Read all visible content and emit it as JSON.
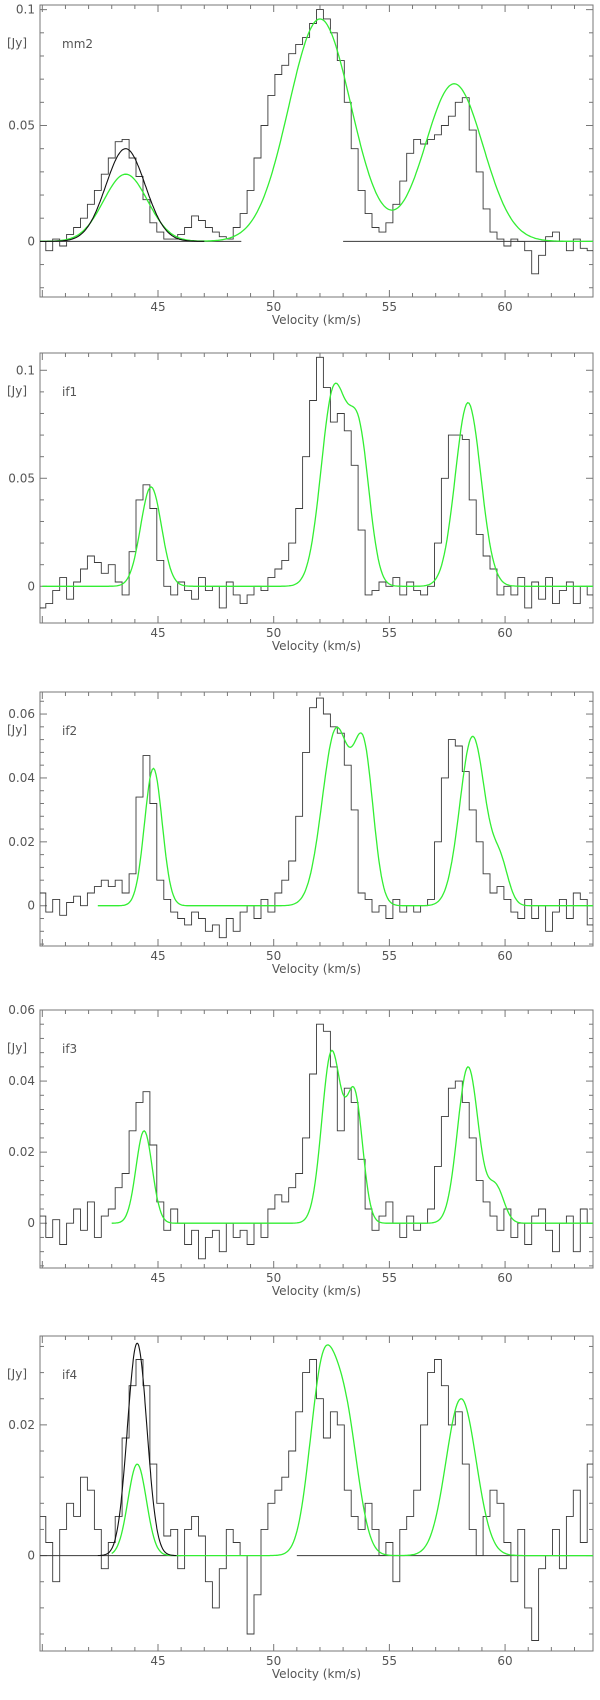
{
  "colors": {
    "observed": "#3a3a3a",
    "fit": "#33ee33",
    "fit_dark": "#111111",
    "axis": "#777777",
    "text": "#555555"
  },
  "chart_data": [
    {
      "type": "line",
      "panel_label": "mm2",
      "unit_label": "[Jy]",
      "xlabel": "Velocity (km/s)",
      "xlim": [
        39.9,
        63.8
      ],
      "ylim": [
        -0.024,
        0.102
      ],
      "xticks": [
        45,
        50,
        55,
        60
      ],
      "yticks": [
        {
          "v": 0,
          "label": "0"
        },
        {
          "v": 0.05,
          "label": "0.05"
        },
        {
          "v": 0.1,
          "label": "0.1"
        }
      ],
      "baselines": [
        [
          39.9,
          48.6
        ],
        [
          53.0,
          63.8
        ]
      ],
      "fit_range": [
        39.9,
        63.8
      ],
      "fit_components": [
        {
          "center": 43.6,
          "amp": 0.029,
          "sigma": 0.95
        },
        {
          "center": 52.0,
          "amp": 0.096,
          "sigma": 1.35
        },
        {
          "center": 57.8,
          "amp": 0.068,
          "sigma": 1.25
        }
      ],
      "dark_fit": {
        "center": 43.6,
        "amp": 0.04,
        "sigma": 0.85,
        "range": [
          39.9,
          47.0
        ]
      },
      "observed": {
        "x": [
          40.0,
          40.3,
          40.6,
          40.9,
          41.2,
          41.5,
          41.8,
          42.1,
          42.4,
          42.7,
          43.0,
          43.3,
          43.6,
          43.9,
          44.2,
          44.5,
          44.8,
          45.1,
          45.4,
          45.7,
          46.0,
          46.3,
          46.6,
          46.9,
          47.2,
          47.5,
          47.8,
          48.1,
          48.4,
          48.7,
          49.0,
          49.3,
          49.6,
          49.9,
          50.2,
          50.5,
          50.8,
          51.1,
          51.4,
          51.7,
          52.0,
          52.3,
          52.6,
          52.9,
          53.2,
          53.5,
          53.8,
          54.1,
          54.4,
          54.7,
          55.0,
          55.3,
          55.6,
          55.9,
          56.2,
          56.5,
          56.8,
          57.1,
          57.4,
          57.7,
          58.0,
          58.3,
          58.6,
          58.9,
          59.2,
          59.5,
          59.8,
          60.1,
          60.4,
          60.7,
          61.0,
          61.3,
          61.6,
          61.9,
          62.2,
          62.5,
          62.8,
          63.1,
          63.4,
          63.7
        ],
        "y": [
          0.0,
          -0.004,
          0.001,
          -0.002,
          0.003,
          0.006,
          0.01,
          0.016,
          0.022,
          0.029,
          0.036,
          0.043,
          0.044,
          0.036,
          0.028,
          0.018,
          0.008,
          0.004,
          0.001,
          0.001,
          0.003,
          0.006,
          0.011,
          0.009,
          0.006,
          0.004,
          0.002,
          0.001,
          0.006,
          0.012,
          0.022,
          0.036,
          0.05,
          0.063,
          0.072,
          0.076,
          0.081,
          0.085,
          0.088,
          0.094,
          0.1,
          0.096,
          0.09,
          0.078,
          0.06,
          0.04,
          0.022,
          0.012,
          0.006,
          0.004,
          0.008,
          0.016,
          0.026,
          0.038,
          0.044,
          0.042,
          0.044,
          0.046,
          0.05,
          0.054,
          0.06,
          0.062,
          0.048,
          0.03,
          0.014,
          0.004,
          0.001,
          -0.002,
          0.001,
          0.0,
          -0.004,
          -0.014,
          -0.006,
          0.002,
          0.004,
          0.0,
          -0.004,
          0.001,
          -0.003,
          -0.004
        ]
      }
    },
    {
      "type": "line",
      "panel_label": "if1",
      "unit_label": "[Jy]",
      "xlabel": "Velocity (km/s)",
      "xlim": [
        39.9,
        63.8
      ],
      "ylim": [
        -0.017,
        0.108
      ],
      "xticks": [
        45,
        50,
        55,
        60
      ],
      "yticks": [
        {
          "v": 0,
          "label": "0"
        },
        {
          "v": 0.05,
          "label": "0.05"
        },
        {
          "v": 0.1,
          "label": "0.1"
        }
      ],
      "baselines": [],
      "fit_range": [
        40.0,
        63.8
      ],
      "fit_components": [
        {
          "center": 44.7,
          "amp": 0.046,
          "sigma": 0.45
        },
        {
          "center": 52.6,
          "amp": 0.09,
          "sigma": 0.55
        },
        {
          "center": 53.7,
          "amp": 0.065,
          "sigma": 0.45
        },
        {
          "center": 58.4,
          "amp": 0.085,
          "sigma": 0.55
        }
      ],
      "observed": {
        "x": [
          40.0,
          40.3,
          40.6,
          40.9,
          41.2,
          41.5,
          41.8,
          42.1,
          42.4,
          42.7,
          43.0,
          43.3,
          43.6,
          43.9,
          44.2,
          44.5,
          44.8,
          45.1,
          45.4,
          45.7,
          46.0,
          46.3,
          46.6,
          46.9,
          47.2,
          47.5,
          47.8,
          48.1,
          48.4,
          48.7,
          49.0,
          49.3,
          49.6,
          49.9,
          50.2,
          50.5,
          50.8,
          51.1,
          51.4,
          51.7,
          52.0,
          52.3,
          52.6,
          52.9,
          53.2,
          53.5,
          53.8,
          54.1,
          54.4,
          54.7,
          55.0,
          55.3,
          55.6,
          55.9,
          56.2,
          56.5,
          56.8,
          57.1,
          57.4,
          57.7,
          58.0,
          58.3,
          58.6,
          58.9,
          59.2,
          59.5,
          59.8,
          60.1,
          60.4,
          60.7,
          61.0,
          61.3,
          61.6,
          61.9,
          62.2,
          62.5,
          62.8,
          63.1,
          63.4,
          63.7
        ],
        "y": [
          -0.01,
          -0.008,
          -0.002,
          0.004,
          -0.006,
          0.002,
          0.008,
          0.014,
          0.011,
          0.006,
          0.01,
          0.002,
          -0.004,
          0.016,
          0.04,
          0.047,
          0.036,
          0.012,
          0.0,
          -0.004,
          0.002,
          -0.002,
          -0.006,
          0.004,
          -0.002,
          0.0,
          -0.01,
          0.002,
          -0.004,
          -0.008,
          -0.004,
          0.0,
          -0.002,
          0.004,
          0.008,
          0.012,
          0.02,
          0.036,
          0.06,
          0.086,
          0.106,
          0.092,
          0.076,
          0.08,
          0.072,
          0.056,
          0.026,
          -0.004,
          -0.002,
          0.002,
          0.0,
          0.004,
          -0.004,
          0.002,
          -0.002,
          -0.004,
          0.0,
          0.02,
          0.05,
          0.07,
          0.07,
          0.068,
          0.04,
          0.024,
          0.014,
          0.008,
          -0.004,
          0.0,
          -0.004,
          0.004,
          -0.01,
          0.002,
          -0.006,
          0.004,
          -0.008,
          -0.002,
          0.002,
          -0.008,
          0.0,
          -0.004
        ]
      }
    },
    {
      "type": "line",
      "panel_label": "if2",
      "unit_label": "[Jy]",
      "xlabel": "Velocity (km/s)",
      "xlim": [
        39.9,
        63.8
      ],
      "ylim": [
        -0.0126,
        0.0669
      ],
      "xticks": [
        45,
        50,
        55,
        60
      ],
      "yticks": [
        {
          "v": 0,
          "label": "0"
        },
        {
          "v": 0.02,
          "label": "0.02"
        },
        {
          "v": 0.04,
          "label": "0.04"
        },
        {
          "v": 0.06,
          "label": "0.06"
        }
      ],
      "baselines": [],
      "fit_range": [
        42.4,
        63.8
      ],
      "fit_components": [
        {
          "center": 44.8,
          "amp": 0.043,
          "sigma": 0.38
        },
        {
          "center": 52.7,
          "amp": 0.055,
          "sigma": 0.6
        },
        {
          "center": 53.9,
          "amp": 0.045,
          "sigma": 0.42
        },
        {
          "center": 58.6,
          "amp": 0.053,
          "sigma": 0.55
        },
        {
          "center": 59.8,
          "amp": 0.012,
          "sigma": 0.35
        }
      ],
      "observed": {
        "x": [
          40.0,
          40.3,
          40.6,
          40.9,
          41.2,
          41.5,
          41.8,
          42.1,
          42.4,
          42.7,
          43.0,
          43.3,
          43.6,
          43.9,
          44.2,
          44.5,
          44.8,
          45.1,
          45.4,
          45.7,
          46.0,
          46.3,
          46.6,
          46.9,
          47.2,
          47.5,
          47.8,
          48.1,
          48.4,
          48.7,
          49.0,
          49.3,
          49.6,
          49.9,
          50.2,
          50.5,
          50.8,
          51.1,
          51.4,
          51.7,
          52.0,
          52.3,
          52.6,
          52.9,
          53.2,
          53.5,
          53.8,
          54.1,
          54.4,
          54.7,
          55.0,
          55.3,
          55.6,
          55.9,
          56.2,
          56.5,
          56.8,
          57.1,
          57.4,
          57.7,
          58.0,
          58.3,
          58.6,
          58.9,
          59.2,
          59.5,
          59.8,
          60.1,
          60.4,
          60.7,
          61.0,
          61.3,
          61.6,
          61.9,
          62.2,
          62.5,
          62.8,
          63.1,
          63.4,
          63.7
        ],
        "y": [
          0.004,
          -0.002,
          0.002,
          -0.003,
          0.001,
          0.003,
          0.0,
          0.004,
          0.006,
          0.008,
          0.006,
          0.008,
          0.004,
          0.01,
          0.034,
          0.047,
          0.032,
          0.008,
          0.002,
          -0.002,
          -0.004,
          -0.006,
          -0.002,
          -0.004,
          -0.008,
          -0.006,
          -0.01,
          -0.004,
          -0.008,
          -0.002,
          0.0,
          -0.004,
          0.002,
          -0.002,
          0.004,
          0.008,
          0.014,
          0.028,
          0.048,
          0.062,
          0.065,
          0.06,
          0.056,
          0.054,
          0.044,
          0.03,
          0.004,
          0.002,
          -0.002,
          0.0,
          -0.004,
          0.002,
          -0.002,
          0.0,
          -0.002,
          0.0,
          0.002,
          0.02,
          0.04,
          0.052,
          0.05,
          0.042,
          0.03,
          0.02,
          0.01,
          0.004,
          0.006,
          0.002,
          -0.002,
          -0.004,
          0.002,
          -0.004,
          0.0,
          -0.008,
          -0.002,
          0.002,
          -0.004,
          0.004,
          0.002,
          -0.006
        ]
      }
    },
    {
      "type": "line",
      "panel_label": "if3",
      "unit_label": "[Jy]",
      "xlabel": "Velocity (km/s)",
      "xlim": [
        39.9,
        63.8
      ],
      "ylim": [
        -0.0126,
        0.06
      ],
      "xticks": [
        45,
        50,
        55,
        60
      ],
      "yticks": [
        {
          "v": 0,
          "label": "0"
        },
        {
          "v": 0.02,
          "label": "0.02"
        },
        {
          "v": 0.04,
          "label": "0.04"
        },
        {
          "v": 0.06,
          "label": "0.06"
        }
      ],
      "baselines": [],
      "fit_range": [
        43.0,
        63.8
      ],
      "fit_components": [
        {
          "center": 44.4,
          "amp": 0.026,
          "sigma": 0.35
        },
        {
          "center": 52.5,
          "amp": 0.048,
          "sigma": 0.42
        },
        {
          "center": 53.5,
          "amp": 0.035,
          "sigma": 0.35
        },
        {
          "center": 58.4,
          "amp": 0.044,
          "sigma": 0.45
        },
        {
          "center": 59.6,
          "amp": 0.01,
          "sigma": 0.35
        }
      ],
      "observed": {
        "x": [
          40.0,
          40.3,
          40.6,
          40.9,
          41.2,
          41.5,
          41.8,
          42.1,
          42.4,
          42.7,
          43.0,
          43.3,
          43.6,
          43.9,
          44.2,
          44.5,
          44.8,
          45.1,
          45.4,
          45.7,
          46.0,
          46.3,
          46.6,
          46.9,
          47.2,
          47.5,
          47.8,
          48.1,
          48.4,
          48.7,
          49.0,
          49.3,
          49.6,
          49.9,
          50.2,
          50.5,
          50.8,
          51.1,
          51.4,
          51.7,
          52.0,
          52.3,
          52.6,
          52.9,
          53.2,
          53.5,
          53.8,
          54.1,
          54.4,
          54.7,
          55.0,
          55.3,
          55.6,
          55.9,
          56.2,
          56.5,
          56.8,
          57.1,
          57.4,
          57.7,
          58.0,
          58.3,
          58.6,
          58.9,
          59.2,
          59.5,
          59.8,
          60.1,
          60.4,
          60.7,
          61.0,
          61.3,
          61.6,
          61.9,
          62.2,
          62.5,
          62.8,
          63.1,
          63.4,
          63.7
        ],
        "y": [
          0.002,
          -0.004,
          0.001,
          -0.006,
          0.0,
          0.004,
          -0.002,
          0.006,
          -0.004,
          0.002,
          0.004,
          0.01,
          0.014,
          0.026,
          0.034,
          0.037,
          0.022,
          0.006,
          -0.002,
          0.004,
          0.0,
          -0.006,
          -0.002,
          -0.01,
          -0.004,
          -0.002,
          -0.008,
          0.0,
          -0.004,
          -0.002,
          -0.006,
          0.0,
          -0.004,
          0.004,
          0.008,
          0.006,
          0.01,
          0.014,
          0.024,
          0.042,
          0.056,
          0.054,
          0.044,
          0.026,
          0.038,
          0.034,
          0.018,
          0.004,
          -0.002,
          0.002,
          0.006,
          0.0,
          -0.004,
          0.002,
          -0.002,
          0.0,
          0.004,
          0.016,
          0.03,
          0.038,
          0.04,
          0.034,
          0.024,
          0.012,
          0.006,
          0.002,
          -0.002,
          0.004,
          -0.004,
          0.0,
          -0.006,
          0.002,
          0.004,
          -0.002,
          -0.008,
          0.0,
          0.002,
          -0.008,
          0.004,
          0.0
        ]
      }
    },
    {
      "type": "line",
      "panel_label": "if4",
      "unit_label": "[Jy]",
      "xlabel": "Velocity (km/s)",
      "xlim": [
        39.9,
        63.8
      ],
      "ylim": [
        -0.0146,
        0.0336
      ],
      "xticks": [
        45,
        50,
        55,
        60
      ],
      "yticks": [
        {
          "v": 0,
          "label": "0"
        },
        {
          "v": 0.02,
          "label": "0.02"
        }
      ],
      "baselines": [
        [
          39.9,
          46.0
        ],
        [
          51.0,
          63.8
        ]
      ],
      "fit_range": [
        43.0,
        63.8
      ],
      "fit_components": [
        {
          "center": 44.1,
          "amp": 0.014,
          "sigma": 0.4
        },
        {
          "center": 52.1,
          "amp": 0.027,
          "sigma": 0.55
        },
        {
          "center": 53.1,
          "amp": 0.02,
          "sigma": 0.55
        },
        {
          "center": 58.1,
          "amp": 0.024,
          "sigma": 0.65
        }
      ],
      "dark_fit": {
        "center": 44.1,
        "amp": 0.0325,
        "sigma": 0.42,
        "range": [
          42.4,
          45.8
        ]
      },
      "observed": {
        "x": [
          40.0,
          40.3,
          40.6,
          40.9,
          41.2,
          41.5,
          41.8,
          42.1,
          42.4,
          42.7,
          43.0,
          43.3,
          43.6,
          43.9,
          44.2,
          44.5,
          44.8,
          45.1,
          45.4,
          45.7,
          46.0,
          46.3,
          46.6,
          46.9,
          47.2,
          47.5,
          47.8,
          48.1,
          48.4,
          48.7,
          49.0,
          49.3,
          49.6,
          49.9,
          50.2,
          50.5,
          50.8,
          51.1,
          51.4,
          51.7,
          52.0,
          52.3,
          52.6,
          52.9,
          53.2,
          53.5,
          53.8,
          54.1,
          54.4,
          54.7,
          55.0,
          55.3,
          55.6,
          55.9,
          56.2,
          56.5,
          56.8,
          57.1,
          57.4,
          57.7,
          58.0,
          58.3,
          58.6,
          58.9,
          59.2,
          59.5,
          59.8,
          60.1,
          60.4,
          60.7,
          61.0,
          61.3,
          61.6,
          61.9,
          62.2,
          62.5,
          62.8,
          63.1,
          63.4,
          63.7
        ],
        "y": [
          0.006,
          0.002,
          -0.004,
          0.004,
          0.008,
          0.006,
          0.012,
          0.01,
          0.004,
          -0.002,
          0.002,
          0.006,
          0.018,
          0.026,
          0.03,
          0.026,
          0.014,
          0.008,
          0.003,
          0.004,
          -0.002,
          0.004,
          0.006,
          0.003,
          -0.004,
          -0.008,
          -0.002,
          0.004,
          0.002,
          0.0,
          -0.012,
          -0.006,
          0.004,
          0.008,
          0.01,
          0.012,
          0.016,
          0.022,
          0.028,
          0.03,
          0.024,
          0.018,
          0.022,
          0.02,
          0.01,
          0.006,
          0.004,
          0.008,
          0.004,
          0.0,
          0.002,
          -0.004,
          0.004,
          0.006,
          0.01,
          0.02,
          0.028,
          0.03,
          0.026,
          0.02,
          0.022,
          0.014,
          0.004,
          0.0,
          0.006,
          0.01,
          0.008,
          0.002,
          -0.004,
          0.004,
          -0.008,
          -0.013,
          -0.002,
          0.0,
          0.004,
          -0.002,
          0.006,
          0.01,
          0.002,
          0.014
        ]
      }
    }
  ]
}
